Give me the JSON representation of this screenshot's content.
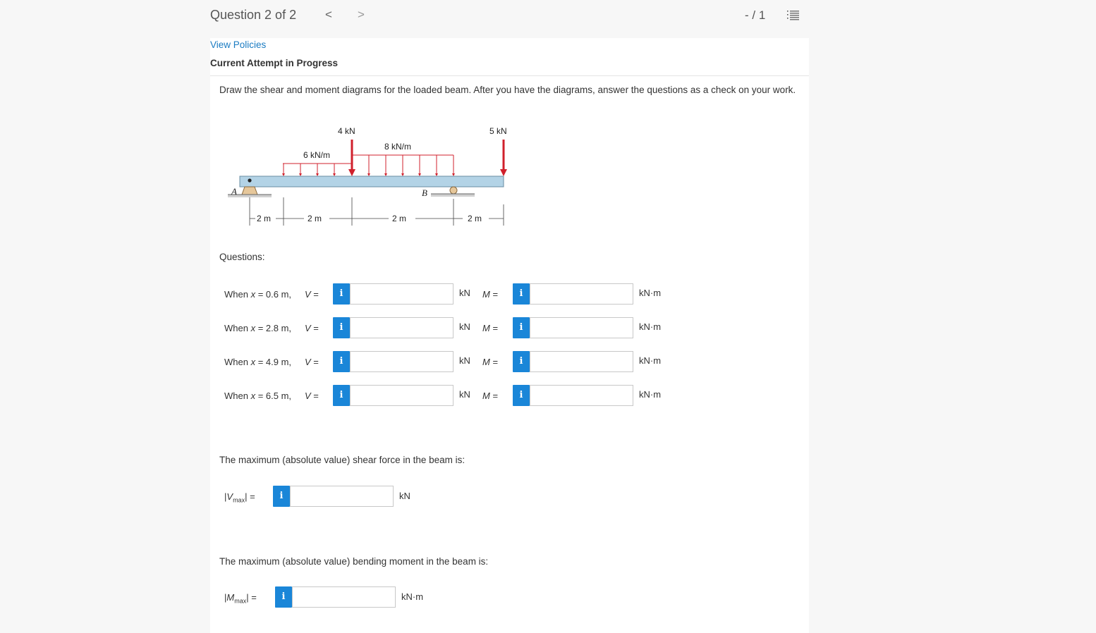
{
  "header": {
    "question_title": "Question 2 of 2",
    "prev_symbol": "<",
    "next_symbol": ">",
    "score": "- / 1"
  },
  "links": {
    "view_policies": "View Policies"
  },
  "attempt_status": "Current Attempt in Progress",
  "prompt": "Draw the shear and moment diagrams for the loaded beam. After you have the diagrams, answer the questions as a check on your work.",
  "figure": {
    "load_4kN": "4 kN",
    "load_5kN": "5 kN",
    "dist_6": "6 kN/m",
    "dist_8": "8 kN/m",
    "support_a": "A",
    "support_b": "B",
    "dim1": "2 m",
    "dim2": "2 m",
    "dim3": "2 m",
    "dim4": "2 m"
  },
  "questions_label": "Questions:",
  "rows": [
    {
      "when": "When ",
      "x_var": "x",
      "x_value": " = 0.6 m,",
      "v_label": "V",
      "eq": " =",
      "v_unit": "kN",
      "m_label": "M",
      "m_unit": "kN·m",
      "v_value": "",
      "m_value": ""
    },
    {
      "when": "When ",
      "x_var": "x",
      "x_value": " = 2.8 m,",
      "v_label": "V",
      "eq": " =",
      "v_unit": "kN",
      "m_label": "M",
      "m_unit": "kN·m",
      "v_value": "",
      "m_value": ""
    },
    {
      "when": "When ",
      "x_var": "x",
      "x_value": " = 4.9 m,",
      "v_label": "V",
      "eq": " =",
      "v_unit": "kN",
      "m_label": "M",
      "m_unit": "kN·m",
      "v_value": "",
      "m_value": ""
    },
    {
      "when": "When ",
      "x_var": "x",
      "x_value": " = 6.5 m,",
      "v_label": "V",
      "eq": " =",
      "v_unit": "kN",
      "m_label": "M",
      "m_unit": "kN·m",
      "v_value": "",
      "m_value": ""
    }
  ],
  "info_symbol": "i",
  "max_shear": {
    "text": "The maximum (absolute value) shear force in the beam is:",
    "label_bar_open": "|",
    "label_var": "V",
    "label_sub": "max",
    "label_bar_close": "| =",
    "unit": "kN",
    "value": ""
  },
  "max_moment": {
    "text": "The maximum (absolute value) bending moment in the beam is:",
    "label_bar_open": "|",
    "label_var": "M",
    "label_sub": "max",
    "label_bar_close": "| =",
    "unit": "kN·m",
    "value": ""
  },
  "colors": {
    "link": "#1a7bc2",
    "info_button": "#1a86d8",
    "load_arrow": "#d0202c",
    "beam": "#b3d3e6"
  }
}
